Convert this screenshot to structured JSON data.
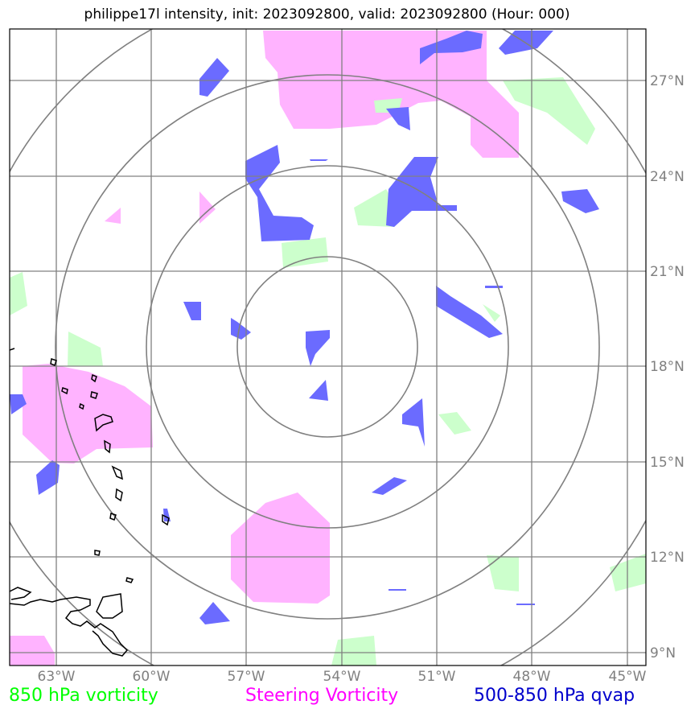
{
  "title": "philippe17l intensity, init: 2023092800, valid: 2023092800 (Hour: 000)",
  "storm": {
    "name": "philippe17l",
    "init": "2023092800",
    "valid": "2023092800",
    "hour": "000"
  },
  "axes": {
    "lon_ticks": [
      "63°W",
      "60°W",
      "57°W",
      "54°W",
      "51°W",
      "48°W",
      "45°W"
    ],
    "lat_ticks": [
      "27°N",
      "24°N",
      "21°N",
      "18°N",
      "15°N",
      "12°N",
      "9°N"
    ],
    "lon_range": [
      -64.5,
      -44.4
    ],
    "lat_range": [
      8.5,
      28.7
    ],
    "grid": true
  },
  "range_rings_center": {
    "lon": -54,
    "lat": 18.7
  },
  "range_rings_count": 4,
  "legend": {
    "vort850": {
      "label": "850 hPa vorticity",
      "color": "#00ff00",
      "fill": "#ccffcc"
    },
    "steering": {
      "label": "Steering Vorticity",
      "color": "#ff00ff",
      "fill": "#ffb3ff"
    },
    "qvap": {
      "label": "500-850 hPa qvap",
      "color": "#0000cc",
      "fill": "#6666ff"
    }
  }
}
